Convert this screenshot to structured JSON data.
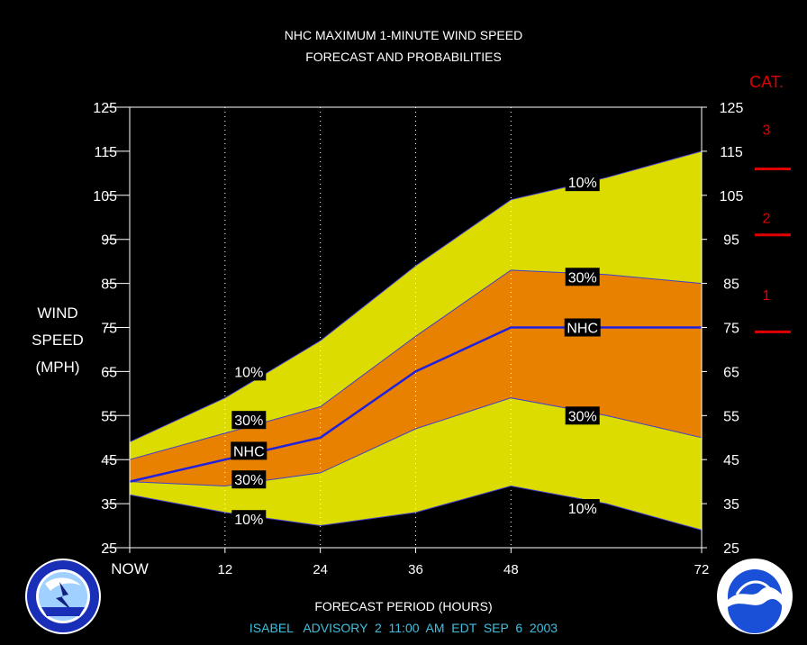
{
  "title_line1": "NHC MAXIMUM 1-MINUTE WIND SPEED",
  "title_line2": "FORECAST AND PROBABILITIES",
  "ylabel_lines": [
    "WIND",
    "SPEED",
    "(MPH)"
  ],
  "xlabel": "FORECAST PERIOD (HOURS)",
  "advisory_text": "ISABEL   ADVISORY  2  11:00  AM  EDT  SEP  6  2003",
  "category_title": "CAT.",
  "categories": [
    {
      "label": "3",
      "value": 120
    },
    {
      "label": "2",
      "value": 100
    },
    {
      "label": "1",
      "value": 82.5
    }
  ],
  "category_thresholds": [
    111,
    96,
    74
  ],
  "logos": {
    "left": "nws-logo-icon",
    "right": "noaa-logo-icon"
  },
  "colors": {
    "background": "#000000",
    "band_10": "#dcdc00",
    "band_30": "#e88000",
    "nhc_line": "#2020e0",
    "category": "#e00000",
    "advisory": "#40c0e0",
    "text": "#ffffff"
  },
  "chart_data": {
    "type": "area",
    "x_tick_labels": [
      "NOW",
      "12",
      "24",
      "36",
      "48",
      "72"
    ],
    "x_tick_values": [
      0,
      12,
      24,
      36,
      48,
      72
    ],
    "xlim": [
      0,
      72
    ],
    "ylim": [
      25,
      125
    ],
    "y_ticks": [
      25,
      35,
      45,
      55,
      65,
      75,
      85,
      95,
      105,
      115,
      125
    ],
    "grid": "vertical dotted at forecast hours",
    "x": [
      0,
      12,
      24,
      36,
      48,
      60,
      72
    ],
    "series": [
      {
        "key": "upper10",
        "values": [
          49,
          59,
          72,
          89,
          104,
          109,
          115
        ]
      },
      {
        "key": "upper30",
        "values": [
          45,
          51,
          57,
          73,
          88,
          87,
          85
        ]
      },
      {
        "key": "nhc",
        "name": "NHC",
        "values": [
          40,
          45,
          50,
          65,
          75,
          75,
          75
        ]
      },
      {
        "key": "lower30",
        "values": [
          40,
          39,
          42,
          52,
          59,
          55,
          50
        ]
      },
      {
        "key": "lower10",
        "values": [
          37,
          33,
          30,
          33,
          39,
          35,
          29
        ]
      }
    ],
    "annotations": [
      {
        "text": "10%",
        "x": 15,
        "y": 65
      },
      {
        "text": "30%",
        "x": 15,
        "y": 54
      },
      {
        "text": "NHC",
        "x": 15,
        "y": 47
      },
      {
        "text": "30%",
        "x": 15,
        "y": 40.5
      },
      {
        "text": "10%",
        "x": 15,
        "y": 31.5
      },
      {
        "text": "10%",
        "x": 57,
        "y": 108
      },
      {
        "text": "30%",
        "x": 57,
        "y": 86.5
      },
      {
        "text": "NHC",
        "x": 57,
        "y": 75
      },
      {
        "text": "30%",
        "x": 57,
        "y": 55
      },
      {
        "text": "10%",
        "x": 57,
        "y": 34
      }
    ]
  }
}
